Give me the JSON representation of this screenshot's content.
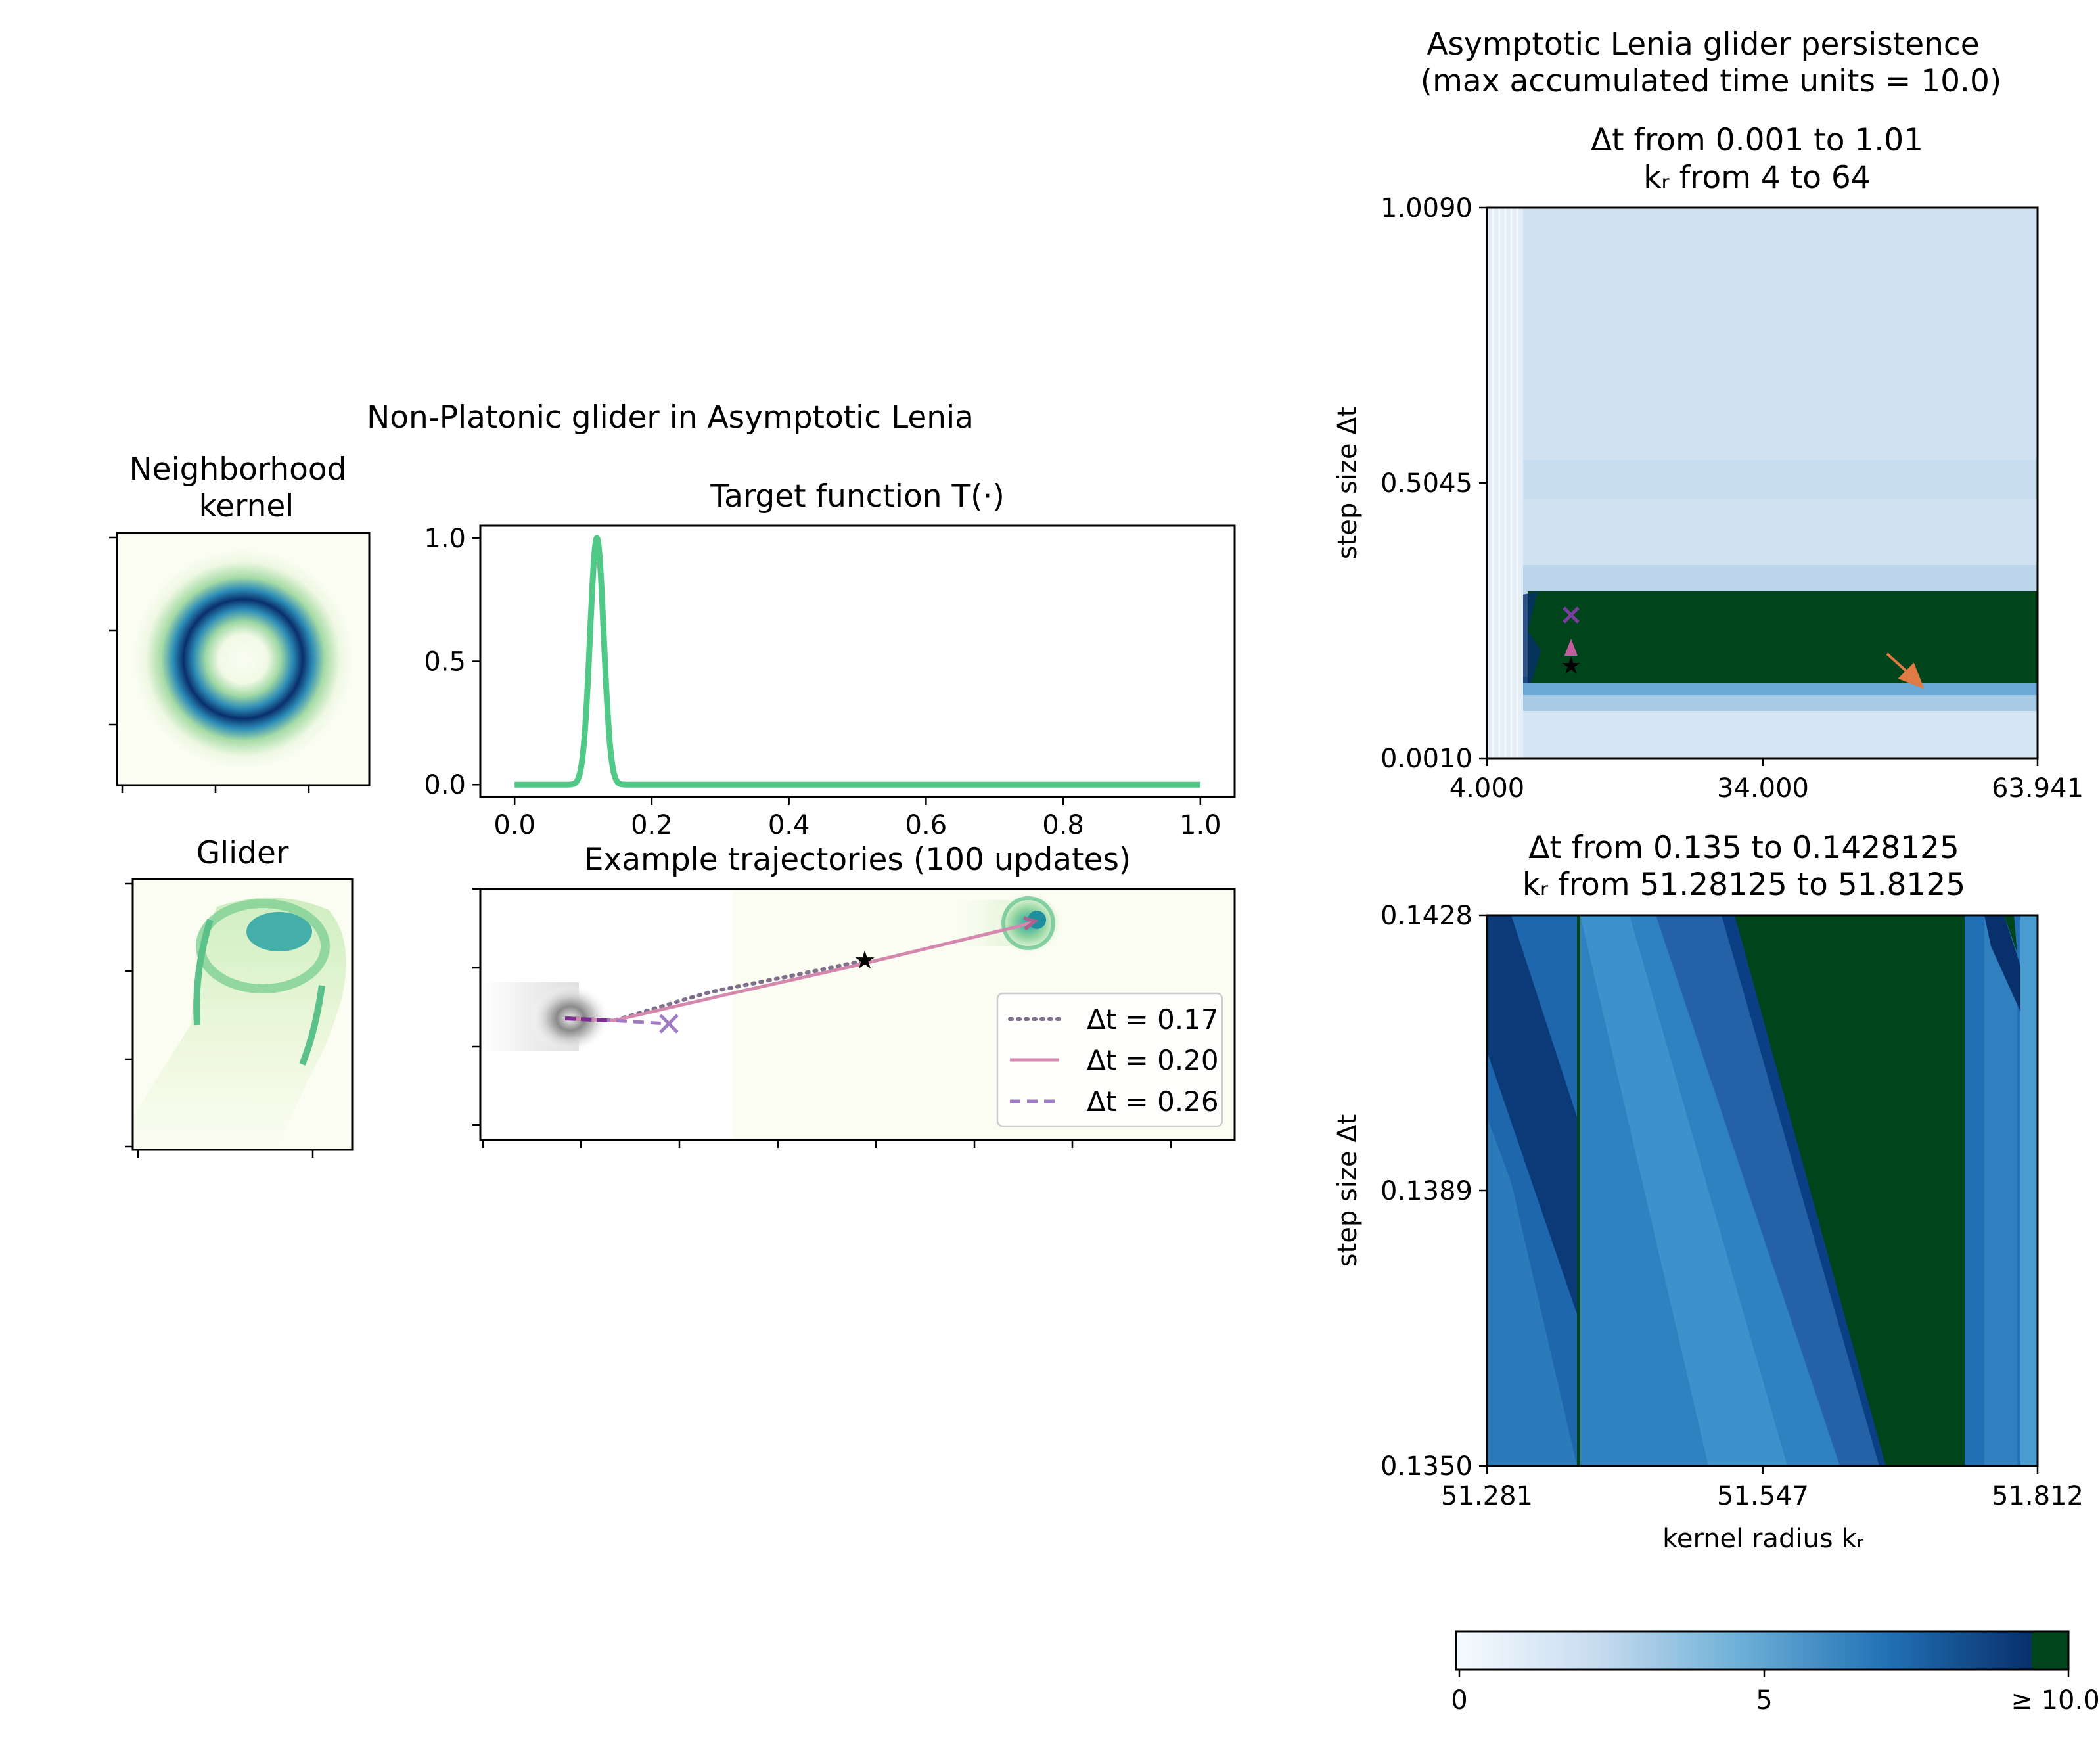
{
  "left": {
    "suptitle": "Non-Platonic glider in Asymptotic Lenia",
    "kernel": {
      "title_line1": "Neighborhood",
      "title_line2": "kernel"
    },
    "glider": {
      "title": "Glider"
    },
    "target": {
      "title": "Target function T(·)",
      "xticks": [
        "0.0",
        "0.2",
        "0.4",
        "0.6",
        "0.8",
        "1.0"
      ],
      "yticks": [
        "0.0",
        "0.5",
        "1.0"
      ]
    },
    "trajectories": {
      "title": "Example trajectories (100 updates)",
      "legend": [
        "Δt = 0.17",
        "Δt = 0.20",
        "Δt = 0.26"
      ]
    }
  },
  "right": {
    "suptitle_line1": "Asymptotic Lenia glider persistence",
    "suptitle_line2": "(max accumulated time units = 10.0)",
    "top": {
      "title_line1": "Δt from 0.001 to 1.01",
      "title_line2": "kᵣ from 4 to 64",
      "ylabel": "step size Δt",
      "xticks": [
        "4.000",
        "34.000",
        "63.941"
      ],
      "yticks": [
        "0.0010",
        "0.5045",
        "1.0090"
      ]
    },
    "bottom": {
      "title_line1": "Δt from 0.135 to 0.1428125",
      "title_line2": "kᵣ from 51.28125 to 51.8125",
      "ylabel": "step size Δt",
      "xlabel": "kernel radius kᵣ",
      "xticks": [
        "51.281",
        "51.547",
        "51.812"
      ],
      "yticks": [
        "0.1350",
        "0.1389",
        "0.1428"
      ]
    },
    "colorbar": {
      "ticks": [
        "0",
        "5",
        "≥ 10.0"
      ]
    }
  },
  "colors": {
    "target_curve": "#4fc985",
    "trajectory_017": "#7f6f8a",
    "trajectory_020": "#d488ad",
    "trajectory_026": "#a07ac2",
    "persist_max": "#00441b",
    "arrow": "#e07b45"
  },
  "chart_data": [
    {
      "type": "line",
      "title": "Target function T(·)",
      "xlim": [
        -0.05,
        1.05
      ],
      "ylim": [
        -0.05,
        1.05
      ],
      "peak_center": 0.12,
      "peak_width": 0.01,
      "peak_height": 1.0
    },
    {
      "type": "heatmap",
      "title": "Δt from 0.001 to 1.01 / kᵣ from 4 to 64",
      "xlabel": "",
      "ylabel": "step size Δt",
      "xlim": [
        4.0,
        63.941
      ],
      "ylim": [
        0.001,
        1.009
      ],
      "persistent_band_dt": [
        0.16,
        0.27
      ],
      "persistent_band_kr_start": 10.0
    },
    {
      "type": "heatmap",
      "title": "Δt from 0.135 to 0.1428125 / kᵣ from 51.28125 to 51.8125",
      "xlabel": "kernel radius kᵣ",
      "ylabel": "step size Δt",
      "xlim": [
        51.281,
        51.812
      ],
      "ylim": [
        0.135,
        0.1428
      ]
    },
    {
      "type": "line",
      "title": "Example trajectories (100 updates)",
      "series": [
        {
          "name": "Δt = 0.17",
          "dt": 0.17,
          "end_marker": "star"
        },
        {
          "name": "Δt = 0.20",
          "dt": 0.2,
          "end_marker": "arrow"
        },
        {
          "name": "Δt = 0.26",
          "dt": 0.26,
          "end_marker": "x"
        }
      ]
    },
    {
      "type": "colorbar",
      "min": 0,
      "max": 10.0,
      "ticks": [
        0,
        5,
        10
      ]
    }
  ]
}
